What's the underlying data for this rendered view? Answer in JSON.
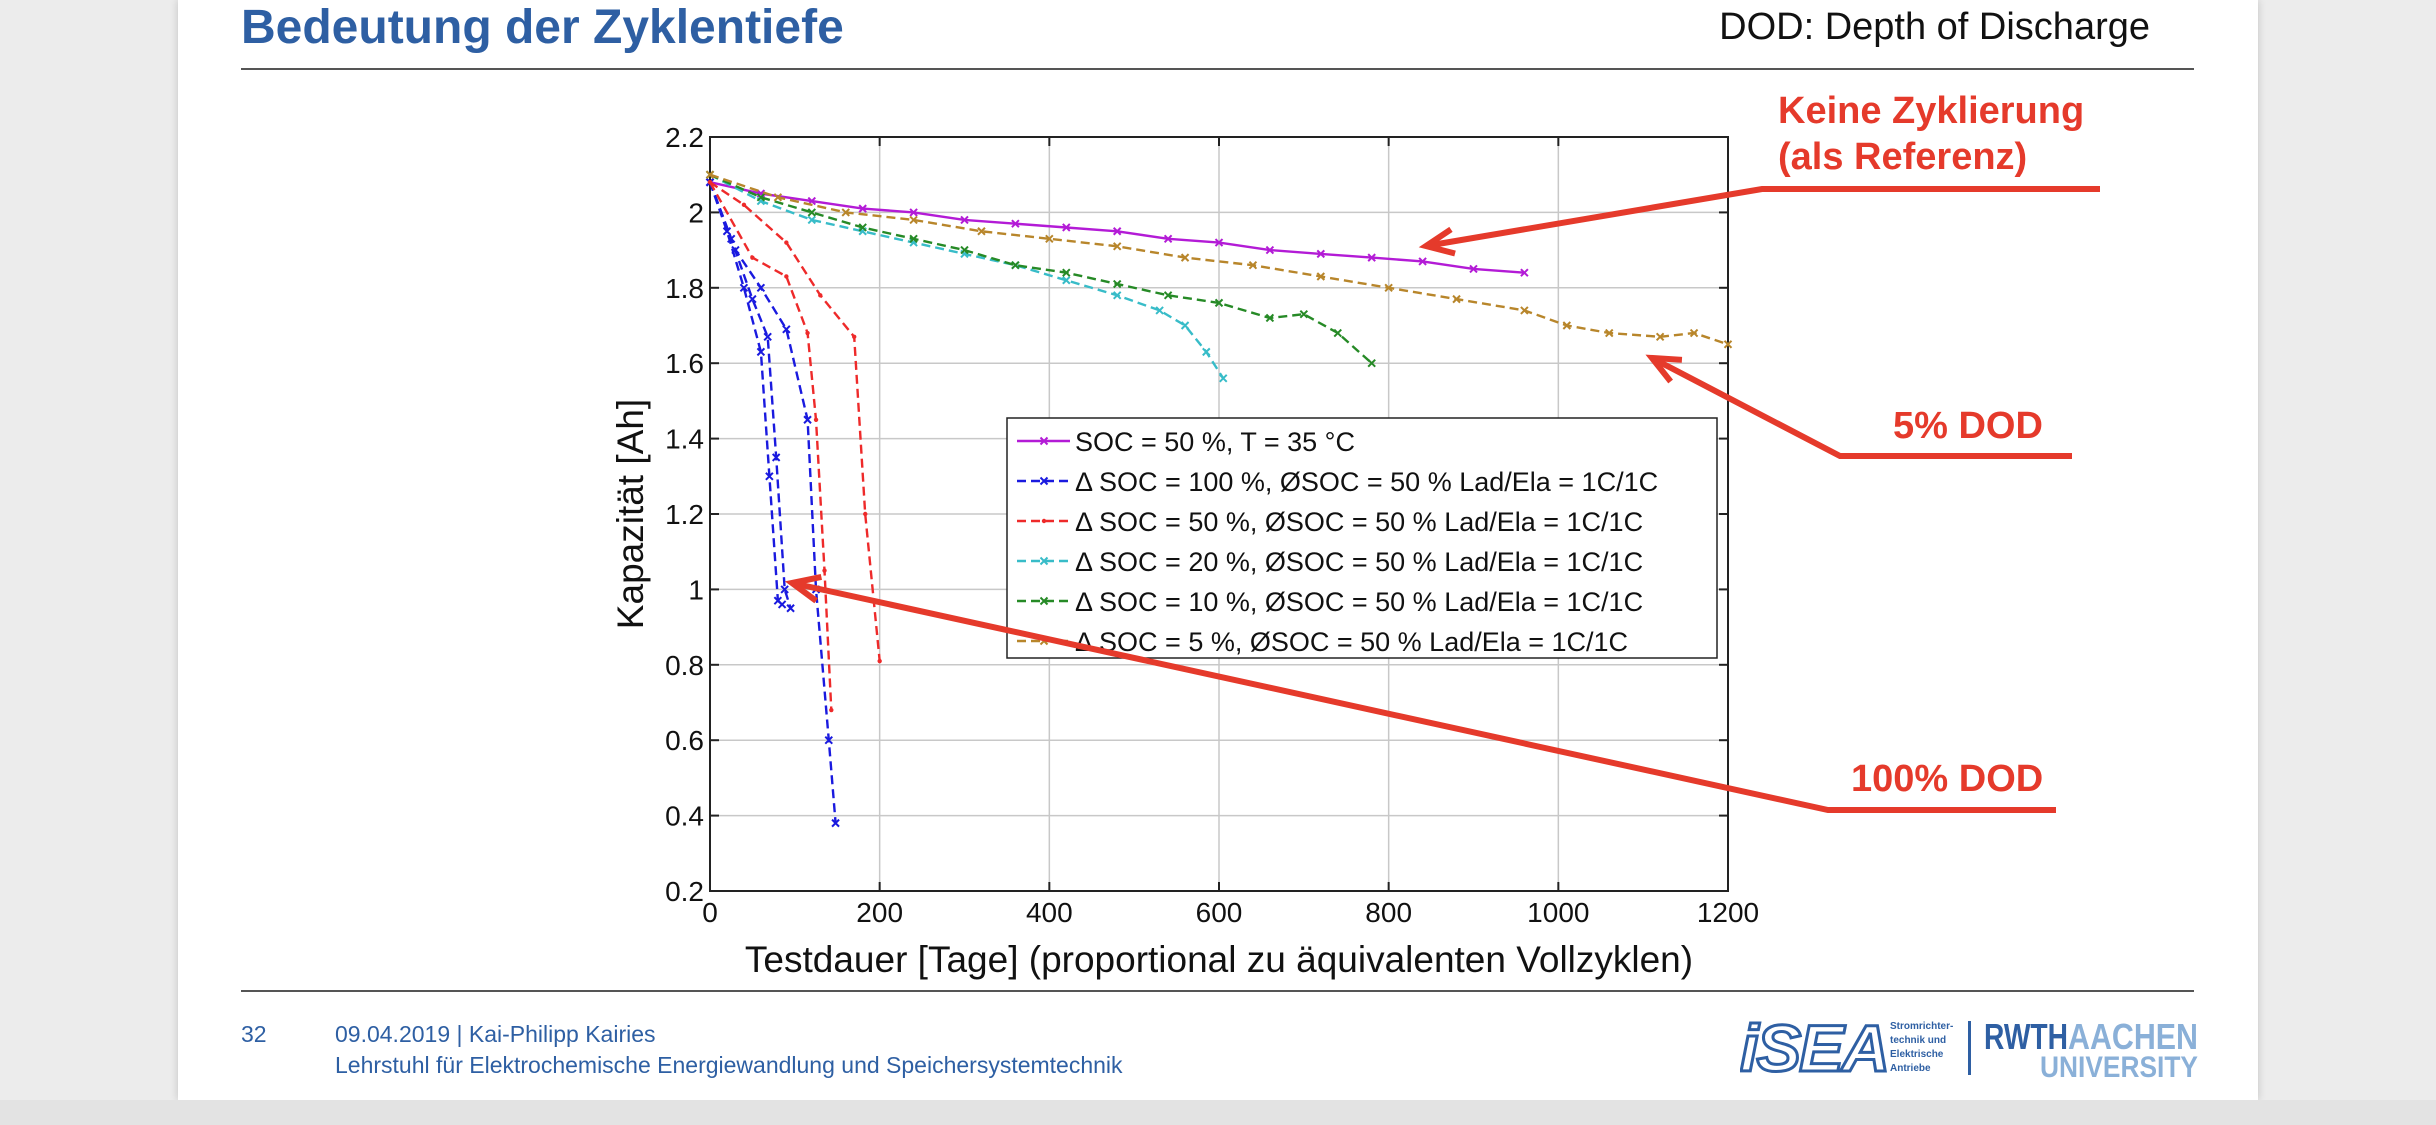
{
  "slide": {
    "title": "Bedeutung der Zyklentiefe",
    "subtitle": "DOD: Depth of Discharge"
  },
  "annotations": {
    "no_cycling_line1": "Keine Zyklierung",
    "no_cycling_line2": "(als Referenz)",
    "dod5": "5% DOD",
    "dod100": "100% DOD"
  },
  "footer": {
    "page_number": "32",
    "date_author": "09.04.2019  |  Kai-Philipp Kairies",
    "institute": "Lehrstuhl für Elektrochemische Energiewandlung und Speichersystemtechnik",
    "isea_text": "iSEA",
    "isea_sub": [
      "Stromrichter-",
      "technik und",
      "Elektrische",
      "Antriebe"
    ],
    "rwth_text": "RWTH",
    "aachen_text": "AACHEN",
    "university_text": "UNIVERSITY"
  },
  "colors": {
    "title": "#2e5fa3",
    "callout": "#e53a2b"
  },
  "chart_data": {
    "type": "line",
    "xlabel": "Testdauer [Tage] (proportional zu äquivalenten Vollzyklen)",
    "ylabel": "Kapazität [Ah]",
    "xlim": [
      0,
      1200
    ],
    "ylim": [
      0.2,
      2.2
    ],
    "xticks": [
      0,
      200,
      400,
      600,
      800,
      1000,
      1200
    ],
    "yticks": [
      0.2,
      0.4,
      0.6,
      0.8,
      1,
      1.2,
      1.4,
      1.6,
      1.8,
      2,
      2.2
    ],
    "ytick_labels": [
      "0.2",
      "0.4",
      "0.6",
      "0.8",
      "1",
      "1.2",
      "1.4",
      "1.6",
      "1.8",
      "2",
      "2.2"
    ],
    "grid": true,
    "legend_position": "center-right",
    "series": [
      {
        "name": "SOC = 50 %, T = 35 °C",
        "color": "#b31bd6",
        "dash": "solid",
        "marker": "x",
        "x": [
          0,
          60,
          120,
          180,
          240,
          300,
          360,
          420,
          480,
          540,
          600,
          660,
          720,
          780,
          840,
          900,
          960
        ],
        "y": [
          2.08,
          2.05,
          2.03,
          2.01,
          2.0,
          1.98,
          1.97,
          1.96,
          1.95,
          1.93,
          1.92,
          1.9,
          1.89,
          1.88,
          1.87,
          1.85,
          1.84
        ]
      },
      {
        "name": "Δ SOC = 100 %, ØSOC = 50 %  Lad/Ela = 1C/1C",
        "color": "#1a1adf",
        "dash": "dashed",
        "marker": "x",
        "x": [
          0,
          20,
          40,
          60,
          70,
          80,
          85
        ],
        "y": [
          2.08,
          1.95,
          1.8,
          1.63,
          1.3,
          0.97,
          0.96
        ]
      },
      {
        "name": "Δ SOC = 100 %, ØSOC = 50 %  Lad/Ela = 1C/1C (b)",
        "color": "#1a1adf",
        "dash": "dashed",
        "marker": "x",
        "legend": false,
        "x": [
          0,
          25,
          50,
          68,
          78,
          88,
          95
        ],
        "y": [
          2.08,
          1.93,
          1.77,
          1.67,
          1.35,
          1.0,
          0.95
        ]
      },
      {
        "name": "Δ SOC = 100 %, ØSOC = 50 %  Lad/Ela = 1C/1C (c)",
        "color": "#1a1adf",
        "dash": "dashed",
        "marker": "x",
        "legend": false,
        "x": [
          0,
          30,
          60,
          90,
          115,
          125,
          140,
          148
        ],
        "y": [
          2.08,
          1.9,
          1.8,
          1.69,
          1.45,
          1.0,
          0.6,
          0.38
        ]
      },
      {
        "name": "Δ SOC = 50 %, ØSOC = 50 %  Lad/Ela = 1C/1C",
        "color": "#ee2a2a",
        "dash": "dashed",
        "marker": ".",
        "x": [
          0,
          50,
          90,
          115,
          125,
          135,
          143
        ],
        "y": [
          2.08,
          1.88,
          1.83,
          1.68,
          1.45,
          1.05,
          0.68
        ]
      },
      {
        "name": "Δ SOC = 50 %, ØSOC = 50 %  Lad/Ela = 1C/1C (b)",
        "color": "#ee2a2a",
        "dash": "dashed",
        "marker": ".",
        "legend": false,
        "x": [
          0,
          40,
          90,
          130,
          170,
          183,
          200
        ],
        "y": [
          2.08,
          2.02,
          1.92,
          1.78,
          1.67,
          1.2,
          0.81
        ]
      },
      {
        "name": "Δ SOC = 20 %, ØSOC = 50 %  Lad/Ela = 1C/1C",
        "color": "#38bcc8",
        "dash": "dashed",
        "marker": "x",
        "x": [
          0,
          60,
          120,
          180,
          240,
          300,
          360,
          420,
          480,
          530,
          560,
          585,
          605
        ],
        "y": [
          2.1,
          2.03,
          1.98,
          1.95,
          1.92,
          1.89,
          1.86,
          1.82,
          1.78,
          1.74,
          1.7,
          1.63,
          1.56
        ]
      },
      {
        "name": "Δ SOC = 10 %, ØSOC = 50 %  Lad/Ela = 1C/1C",
        "color": "#268a26",
        "dash": "dashed",
        "marker": "x",
        "x": [
          0,
          60,
          120,
          180,
          240,
          300,
          360,
          420,
          480,
          540,
          600,
          660,
          700,
          740,
          780
        ],
        "y": [
          2.1,
          2.04,
          2.0,
          1.96,
          1.93,
          1.9,
          1.86,
          1.84,
          1.81,
          1.78,
          1.76,
          1.72,
          1.73,
          1.68,
          1.6
        ]
      },
      {
        "name": "Δ SOC = 5 %, ØSOC = 50 %  Lad/Ela = 1C/1C",
        "color": "#b8862b",
        "dash": "dashed",
        "marker": "x",
        "x": [
          0,
          80,
          160,
          240,
          320,
          400,
          480,
          560,
          640,
          720,
          800,
          880,
          960,
          1010,
          1060,
          1120,
          1160,
          1200
        ],
        "y": [
          2.1,
          2.04,
          2.0,
          1.98,
          1.95,
          1.93,
          1.91,
          1.88,
          1.86,
          1.83,
          1.8,
          1.77,
          1.74,
          1.7,
          1.68,
          1.67,
          1.68,
          1.65
        ]
      }
    ]
  }
}
